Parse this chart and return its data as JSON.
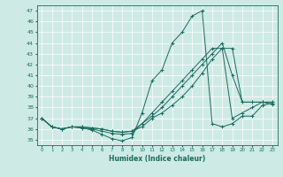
{
  "xlabel": "Humidex (Indice chaleur)",
  "background_color": "#ceeae4",
  "grid_color": "#ffffff",
  "line_color": "#1a6b5e",
  "xlim": [
    -0.5,
    23.5
  ],
  "ylim": [
    34.5,
    47.5
  ],
  "yticks": [
    35,
    36,
    37,
    38,
    39,
    40,
    41,
    42,
    43,
    44,
    45,
    46,
    47
  ],
  "xticks": [
    0,
    1,
    2,
    3,
    4,
    5,
    6,
    7,
    8,
    9,
    10,
    11,
    12,
    13,
    14,
    15,
    16,
    17,
    18,
    19,
    20,
    21,
    22,
    23
  ],
  "series": [
    [
      37.0,
      36.2,
      36.0,
      36.2,
      36.1,
      35.9,
      35.5,
      35.1,
      34.9,
      35.2,
      37.5,
      40.5,
      41.5,
      44.0,
      45.0,
      46.5,
      47.0,
      36.5,
      36.2,
      36.5,
      37.2,
      37.2,
      38.2,
      38.4
    ],
    [
      37.0,
      36.2,
      36.0,
      36.2,
      36.1,
      36.0,
      35.8,
      35.6,
      35.5,
      35.6,
      36.5,
      37.5,
      38.5,
      39.5,
      40.5,
      41.5,
      42.5,
      43.5,
      43.5,
      37.0,
      37.5,
      38.0,
      38.5,
      38.3
    ],
    [
      37.0,
      36.2,
      36.0,
      36.2,
      36.2,
      36.1,
      36.0,
      35.8,
      35.7,
      35.8,
      36.5,
      37.2,
      38.0,
      39.0,
      40.0,
      41.0,
      42.0,
      43.0,
      44.0,
      41.0,
      38.5,
      38.5,
      38.5,
      38.5
    ],
    [
      37.0,
      36.2,
      36.0,
      36.2,
      36.2,
      36.1,
      36.0,
      35.8,
      35.7,
      35.8,
      36.2,
      37.0,
      37.5,
      38.2,
      39.0,
      40.0,
      41.2,
      42.5,
      43.5,
      43.5,
      38.5,
      38.5,
      38.5,
      38.5
    ]
  ]
}
